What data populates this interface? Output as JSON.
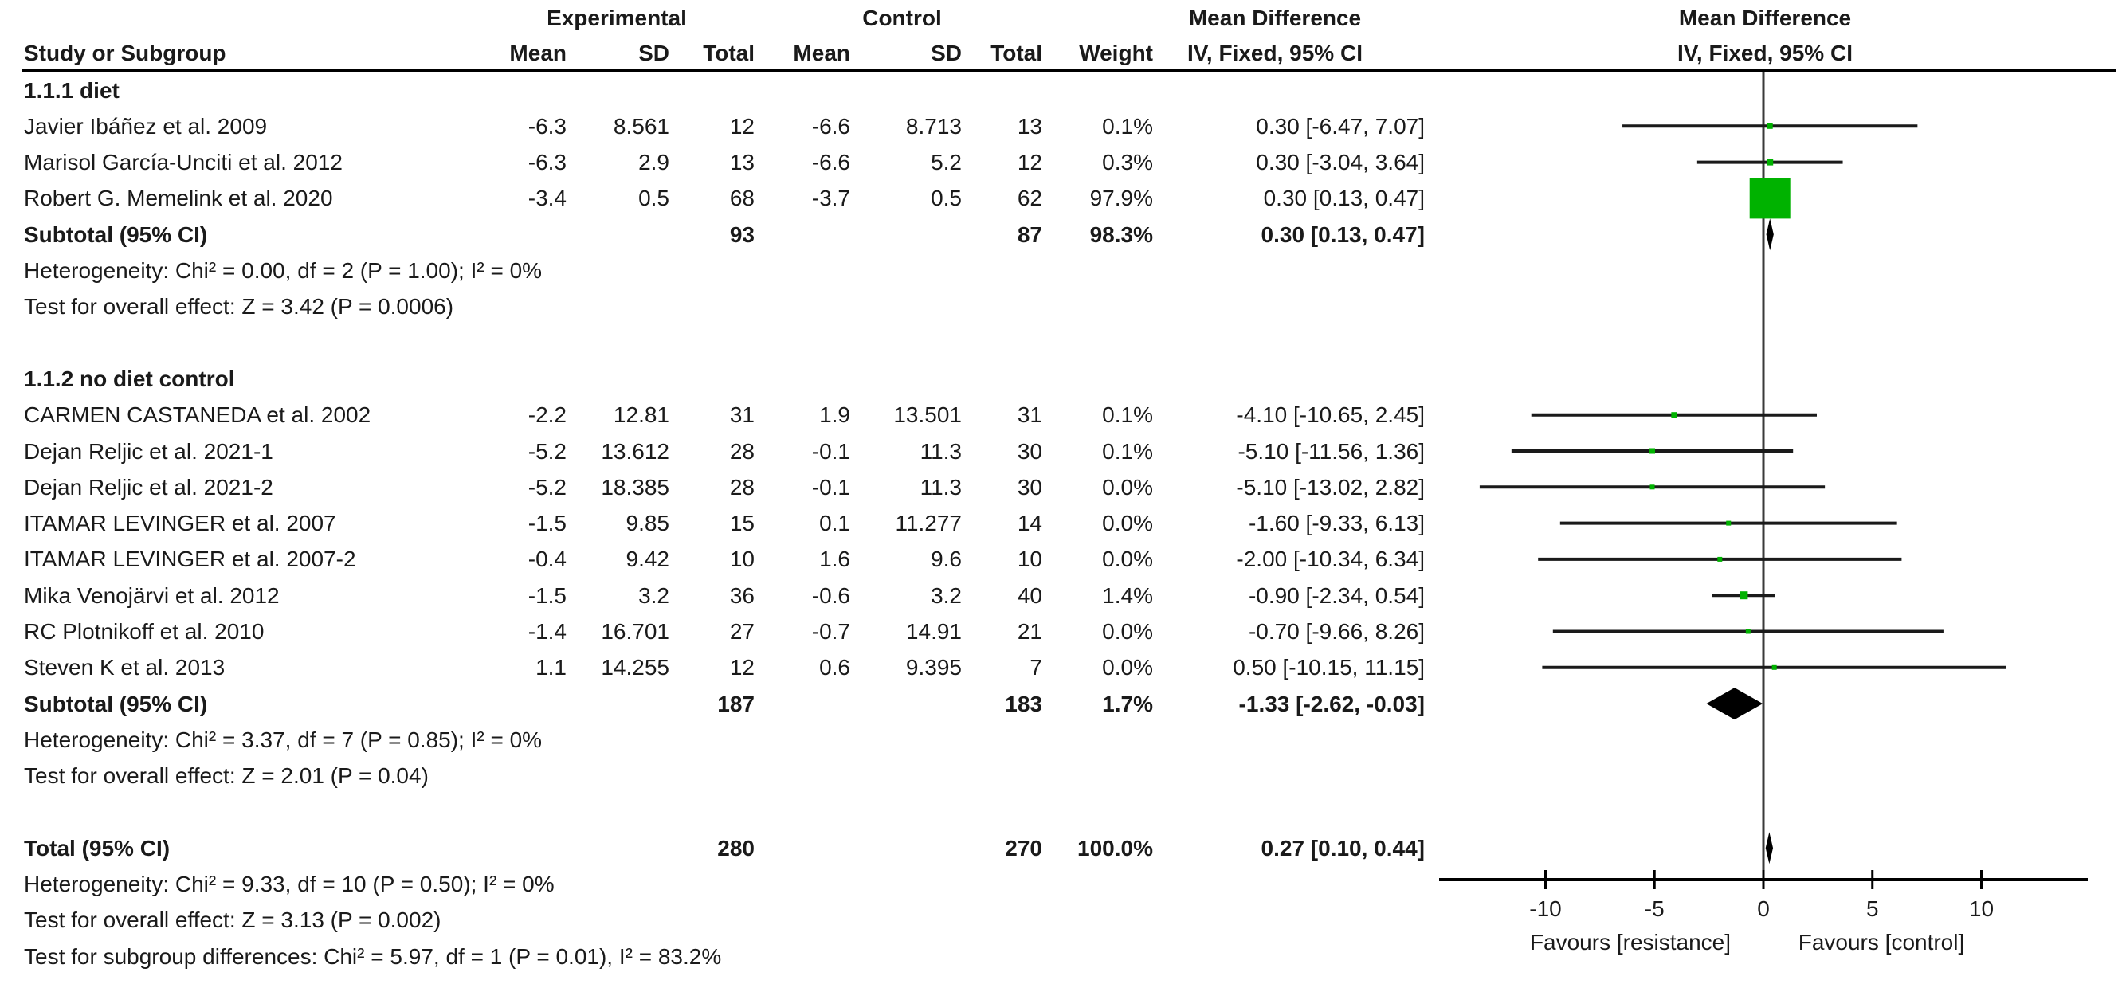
{
  "table": {
    "header": {
      "group_experimental": "Experimental",
      "group_control": "Control",
      "group_md_left": "Mean Difference",
      "group_md_right": "Mean Difference",
      "col_study": "Study or Subgroup",
      "col_mean_e": "Mean",
      "col_sd_e": "SD",
      "col_total_e": "Total",
      "col_mean_c": "Mean",
      "col_sd_c": "SD",
      "col_total_c": "Total",
      "col_weight": "Weight",
      "col_iv_left": "IV, Fixed, 95% CI",
      "col_iv_right": "IV, Fixed, 95% CI"
    },
    "rows": [
      {
        "type": "section",
        "label": "1.1.1 diet"
      },
      {
        "type": "study",
        "study": "Javier Ibáñez et al. 2009",
        "mean_e": "-6.3",
        "sd_e": "8.561",
        "total_e": "12",
        "mean_c": "-6.6",
        "sd_c": "8.713",
        "total_c": "13",
        "weight": "0.1%",
        "ci": "0.30 [-6.47, 7.07]",
        "plot": {
          "kind": "study",
          "index": 0
        }
      },
      {
        "type": "study",
        "study": "Marisol García-Unciti et al. 2012",
        "mean_e": "-6.3",
        "sd_e": "2.9",
        "total_e": "13",
        "mean_c": "-6.6",
        "sd_c": "5.2",
        "total_c": "12",
        "weight": "0.3%",
        "ci": "0.30 [-3.04, 3.64]",
        "plot": {
          "kind": "study",
          "index": 1
        }
      },
      {
        "type": "study",
        "study": "Robert G. Memelink et al. 2020",
        "mean_e": "-3.4",
        "sd_e": "0.5",
        "total_e": "68",
        "mean_c": "-3.7",
        "sd_c": "0.5",
        "total_c": "62",
        "weight": "97.9%",
        "ci": "0.30 [0.13, 0.47]",
        "plot": {
          "kind": "study",
          "index": 2
        }
      },
      {
        "type": "subtotal",
        "label": "Subtotal (95% CI)",
        "total_e": "93",
        "total_c": "87",
        "weight": "98.3%",
        "ci": "0.30 [0.13, 0.47]",
        "plot": {
          "kind": "diamond",
          "index": 0
        }
      },
      {
        "type": "note",
        "text": "Heterogeneity: Chi² = 0.00, df = 2 (P = 1.00); I² = 0%"
      },
      {
        "type": "note",
        "text": "Test for overall effect: Z = 3.42 (P = 0.0006)"
      },
      {
        "type": "spacer"
      },
      {
        "type": "section",
        "label": "1.1.2 no diet control"
      },
      {
        "type": "study",
        "study": "CARMEN CASTANEDA et al. 2002",
        "mean_e": "-2.2",
        "sd_e": "12.81",
        "total_e": "31",
        "mean_c": "1.9",
        "sd_c": "13.501",
        "total_c": "31",
        "weight": "0.1%",
        "ci": "-4.10 [-10.65, 2.45]",
        "plot": {
          "kind": "study",
          "index": 3
        }
      },
      {
        "type": "study",
        "study": "Dejan Reljic et al. 2021-1",
        "mean_e": "-5.2",
        "sd_e": "13.612",
        "total_e": "28",
        "mean_c": "-0.1",
        "sd_c": "11.3",
        "total_c": "30",
        "weight": "0.1%",
        "ci": "-5.10 [-11.56, 1.36]",
        "plot": {
          "kind": "study",
          "index": 4
        }
      },
      {
        "type": "study",
        "study": "Dejan Reljic et al. 2021-2",
        "mean_e": "-5.2",
        "sd_e": "18.385",
        "total_e": "28",
        "mean_c": "-0.1",
        "sd_c": "11.3",
        "total_c": "30",
        "weight": "0.0%",
        "ci": "-5.10 [-13.02, 2.82]",
        "plot": {
          "kind": "study",
          "index": 5
        }
      },
      {
        "type": "study",
        "study": "ITAMAR LEVINGER et al. 2007",
        "mean_e": "-1.5",
        "sd_e": "9.85",
        "total_e": "15",
        "mean_c": "0.1",
        "sd_c": "11.277",
        "total_c": "14",
        "weight": "0.0%",
        "ci": "-1.60 [-9.33, 6.13]",
        "plot": {
          "kind": "study",
          "index": 6
        }
      },
      {
        "type": "study",
        "study": "ITAMAR LEVINGER et al. 2007-2",
        "mean_e": "-0.4",
        "sd_e": "9.42",
        "total_e": "10",
        "mean_c": "1.6",
        "sd_c": "9.6",
        "total_c": "10",
        "weight": "0.0%",
        "ci": "-2.00 [-10.34, 6.34]",
        "plot": {
          "kind": "study",
          "index": 7
        }
      },
      {
        "type": "study",
        "study": "Mika Venojärvi et al. 2012",
        "mean_e": "-1.5",
        "sd_e": "3.2",
        "total_e": "36",
        "mean_c": "-0.6",
        "sd_c": "3.2",
        "total_c": "40",
        "weight": "1.4%",
        "ci": "-0.90 [-2.34, 0.54]",
        "plot": {
          "kind": "study",
          "index": 8
        }
      },
      {
        "type": "study",
        "study": "RC Plotnikoff et al. 2010",
        "mean_e": "-1.4",
        "sd_e": "16.701",
        "total_e": "27",
        "mean_c": "-0.7",
        "sd_c": "14.91",
        "total_c": "21",
        "weight": "0.0%",
        "ci": "-0.70 [-9.66, 8.26]",
        "plot": {
          "kind": "study",
          "index": 9
        }
      },
      {
        "type": "study",
        "study": "Steven K et al. 2013",
        "mean_e": "1.1",
        "sd_e": "14.255",
        "total_e": "12",
        "mean_c": "0.6",
        "sd_c": "9.395",
        "total_c": "7",
        "weight": "0.0%",
        "ci": "0.50 [-10.15, 11.15]",
        "plot": {
          "kind": "study",
          "index": 10
        }
      },
      {
        "type": "subtotal",
        "label": "Subtotal (95% CI)",
        "total_e": "187",
        "total_c": "183",
        "weight": "1.7%",
        "ci": "-1.33 [-2.62, -0.03]",
        "plot": {
          "kind": "diamond",
          "index": 1
        }
      },
      {
        "type": "note",
        "text": "Heterogeneity: Chi² = 3.37, df = 7 (P = 0.85); I² = 0%"
      },
      {
        "type": "note",
        "text": "Test for overall effect: Z = 2.01 (P = 0.04)"
      },
      {
        "type": "spacer"
      },
      {
        "type": "total",
        "label": "Total (95% CI)",
        "total_e": "280",
        "total_c": "270",
        "weight": "100.0%",
        "ci": "0.27 [0.10, 0.44]",
        "plot": {
          "kind": "diamond",
          "index": 2
        }
      },
      {
        "type": "note",
        "text": "Heterogeneity: Chi² = 9.33, df = 10 (P = 0.50); I² = 0%"
      },
      {
        "type": "note",
        "text": "Test for overall effect: Z = 3.13 (P = 0.002)"
      },
      {
        "type": "note",
        "text": "Test for subgroup differences: Chi² = 5.97, df = 1 (P = 0.01), I² = 83.2%"
      }
    ]
  },
  "chart_data": {
    "type": "forest",
    "effect_measure": "Mean Difference, IV, Fixed, 95% CI",
    "ticks": [
      -10,
      -5,
      0,
      5,
      10
    ],
    "xlim": [
      -15,
      15
    ],
    "favours_left": "Favours [resistance]",
    "favours_right": "Favours [control]",
    "marker_color": "#00b200",
    "diamond_color": "#000000",
    "line_color": "#1a1a1a",
    "studies": [
      {
        "name": "Javier Ibáñez et al. 2009",
        "md": 0.3,
        "lo": -6.47,
        "hi": 7.07,
        "weight_pct": 0.1,
        "marker_px": 7
      },
      {
        "name": "Marisol García-Unciti et al. 2012",
        "md": 0.3,
        "lo": -3.04,
        "hi": 3.64,
        "weight_pct": 0.3,
        "marker_px": 8
      },
      {
        "name": "Robert G. Memelink et al. 2020",
        "md": 0.3,
        "lo": 0.13,
        "hi": 0.47,
        "weight_pct": 97.9,
        "marker_px": 51
      },
      {
        "name": "CARMEN CASTANEDA et al. 2002",
        "md": -4.1,
        "lo": -10.65,
        "hi": 2.45,
        "weight_pct": 0.1,
        "marker_px": 7
      },
      {
        "name": "Dejan Reljic et al. 2021-1",
        "md": -5.1,
        "lo": -11.56,
        "hi": 1.36,
        "weight_pct": 0.1,
        "marker_px": 7
      },
      {
        "name": "Dejan Reljic et al. 2021-2",
        "md": -5.1,
        "lo": -13.02,
        "hi": 2.82,
        "weight_pct": 0.0,
        "marker_px": 6
      },
      {
        "name": "ITAMAR LEVINGER et al. 2007",
        "md": -1.6,
        "lo": -9.33,
        "hi": 6.13,
        "weight_pct": 0.0,
        "marker_px": 6
      },
      {
        "name": "ITAMAR LEVINGER et al. 2007-2",
        "md": -2.0,
        "lo": -10.34,
        "hi": 6.34,
        "weight_pct": 0.0,
        "marker_px": 6
      },
      {
        "name": "Mika Venojärvi et al. 2012",
        "md": -0.9,
        "lo": -2.34,
        "hi": 0.54,
        "weight_pct": 1.4,
        "marker_px": 10
      },
      {
        "name": "RC Plotnikoff et al. 2010",
        "md": -0.7,
        "lo": -9.66,
        "hi": 8.26,
        "weight_pct": 0.0,
        "marker_px": 6
      },
      {
        "name": "Steven K et al. 2013",
        "md": 0.5,
        "lo": -10.15,
        "hi": 11.15,
        "weight_pct": 0.0,
        "marker_px": 6
      }
    ],
    "diamonds": [
      {
        "label": "Subtotal 1.1.1 diet",
        "md": 0.3,
        "lo": 0.13,
        "hi": 0.47
      },
      {
        "label": "Subtotal 1.1.2 no diet control",
        "md": -1.33,
        "lo": -2.62,
        "hi": -0.03
      },
      {
        "label": "Total",
        "md": 0.27,
        "lo": 0.1,
        "hi": 0.44
      }
    ]
  }
}
